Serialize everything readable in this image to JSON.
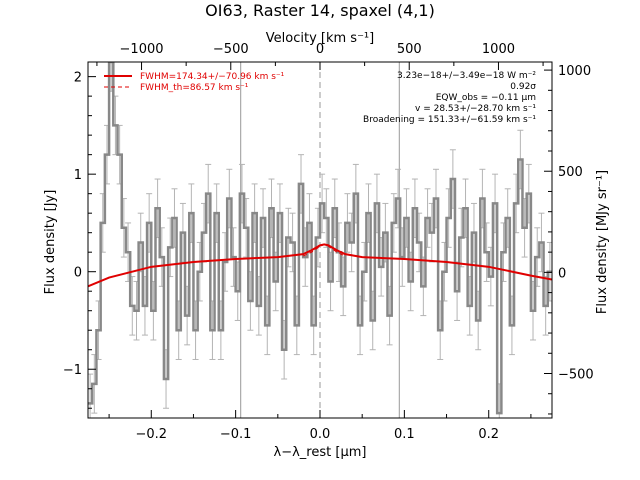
{
  "chart_data": {
    "type": "line",
    "title": "OI63, Raster 14, spaxel (4,1)",
    "xlabel": "λ−λ_rest [μm]",
    "ylabel": "Flux density [Jy]",
    "top_xlabel": "Velocity [km s⁻¹]",
    "right_ylabel": "Flux density [MJy sr⁻¹]",
    "xlim": [
      -0.275,
      0.275
    ],
    "ylim": [
      -1.5,
      2.15
    ],
    "top_xlim": [
      -1300,
      1300
    ],
    "right_ylim": [
      -720,
      1040
    ],
    "x_ticks": [
      -0.2,
      -0.1,
      0.0,
      0.1,
      0.2
    ],
    "x_tick_labels": [
      "−0.2",
      "−0.1",
      "0.0",
      "0.1",
      "0.2"
    ],
    "y_ticks": [
      -1,
      0,
      1,
      2
    ],
    "y_tick_labels": [
      "−1",
      "0",
      "1",
      "2"
    ],
    "top_ticks": [
      -1000,
      -500,
      0,
      500,
      1000
    ],
    "top_tick_labels": [
      "−1000",
      "−500",
      "0",
      "500",
      "1000"
    ],
    "right_ticks": [
      -500,
      0,
      500,
      1000
    ],
    "right_tick_labels": [
      "−500",
      "0",
      "500",
      "1000"
    ],
    "vertical_lines": [
      {
        "x": -0.094,
        "style": "solid",
        "color": "#999999"
      },
      {
        "x": 0.0,
        "style": "dashed",
        "color": "#999999"
      },
      {
        "x": 0.094,
        "style": "solid",
        "color": "#999999"
      }
    ],
    "legend": {
      "placement": "top-left",
      "entries": [
        {
          "label": "FWHM=174.34+/−70.96 km s⁻¹",
          "style": "solid",
          "color": "#e00000"
        },
        {
          "label": "FWHM_th=86.57 km s⁻¹",
          "style": "dashed",
          "color": "#e00000"
        }
      ]
    },
    "annotations": [
      "3.23e−18+/−3.49e−18 W m⁻²",
      "0.92σ",
      "EQW_obs = −0.11 μm",
      "v = 28.53+/−28.70 km s⁻¹",
      "Broadening = 151.33+/−61.59 km s⁻¹"
    ],
    "series": [
      {
        "style": "steps",
        "color": "#888888",
        "x": [
          -0.275,
          -0.27,
          -0.265,
          -0.26,
          -0.255,
          -0.25,
          -0.245,
          -0.24,
          -0.235,
          -0.23,
          -0.225,
          -0.22,
          -0.215,
          -0.21,
          -0.205,
          -0.2,
          -0.195,
          -0.19,
          -0.185,
          -0.18,
          -0.175,
          -0.17,
          -0.165,
          -0.16,
          -0.155,
          -0.15,
          -0.145,
          -0.14,
          -0.135,
          -0.13,
          -0.125,
          -0.12,
          -0.115,
          -0.11,
          -0.105,
          -0.1,
          -0.095,
          -0.09,
          -0.085,
          -0.08,
          -0.075,
          -0.07,
          -0.065,
          -0.06,
          -0.055,
          -0.05,
          -0.045,
          -0.04,
          -0.035,
          -0.03,
          -0.025,
          -0.02,
          -0.015,
          -0.01,
          -0.005,
          0.0,
          0.005,
          0.01,
          0.015,
          0.02,
          0.025,
          0.03,
          0.035,
          0.04,
          0.045,
          0.05,
          0.055,
          0.06,
          0.065,
          0.07,
          0.075,
          0.08,
          0.085,
          0.09,
          0.095,
          0.1,
          0.105,
          0.11,
          0.115,
          0.12,
          0.125,
          0.13,
          0.135,
          0.14,
          0.145,
          0.15,
          0.155,
          0.16,
          0.165,
          0.17,
          0.175,
          0.18,
          0.185,
          0.19,
          0.195,
          0.2,
          0.205,
          0.21,
          0.215,
          0.22,
          0.225,
          0.23,
          0.235,
          0.24,
          0.245,
          0.25,
          0.255,
          0.26,
          0.265,
          0.27
        ],
        "y": [
          -1.35,
          -1.15,
          -0.6,
          0.5,
          1.2,
          2.15,
          1.5,
          1.2,
          0.45,
          0.2,
          -0.35,
          -0.4,
          0.3,
          -0.35,
          0.5,
          -0.4,
          0.65,
          0.15,
          -1.1,
          0.25,
          0.55,
          -0.6,
          0.4,
          -0.45,
          0.6,
          -0.6,
          0.0,
          0.4,
          0.8,
          -0.6,
          0.6,
          -0.6,
          0.1,
          0.75,
          0.15,
          -0.2,
          0.8,
          0.45,
          -0.3,
          0.6,
          -0.35,
          0.55,
          -0.55,
          0.65,
          -0.1,
          0.6,
          -0.8,
          0.35,
          0.3,
          -0.55,
          0.9,
          0.15,
          0.5,
          -0.55,
          0.35,
          0.7,
          0.55,
          -0.1,
          0.65,
          0.2,
          -0.15,
          0.5,
          0.3,
          0.8,
          -0.55,
          0.0,
          0.6,
          -0.5,
          0.7,
          0.05,
          0.4,
          -0.45,
          0.5,
          0.75,
          0.15,
          0.55,
          -0.1,
          0.65,
          0.3,
          -0.15,
          0.55,
          0.4,
          0.75,
          -0.6,
          0.0,
          0.55,
          0.95,
          -0.2,
          0.35,
          0.65,
          -0.35,
          0.4,
          -0.5,
          0.75,
          0.2,
          -0.05,
          0.7,
          -1.45,
          0.2,
          0.55,
          -0.55,
          0.7,
          1.15,
          0.45,
          0.8,
          -0.4,
          0.15,
          0.3,
          -0.35,
          0.0
        ],
        "err": 0.3
      },
      {
        "name": "FWHM=174.34+/−70.96 km s⁻¹",
        "style": "solid",
        "color": "#e00000",
        "x": [
          -0.275,
          -0.25,
          -0.2,
          -0.15,
          -0.1,
          -0.05,
          -0.02,
          -0.01,
          0.0,
          0.005,
          0.01,
          0.02,
          0.03,
          0.05,
          0.1,
          0.15,
          0.2,
          0.25,
          0.275
        ],
        "y": [
          -0.15,
          -0.06,
          0.05,
          0.1,
          0.13,
          0.15,
          0.18,
          0.22,
          0.27,
          0.28,
          0.27,
          0.22,
          0.18,
          0.15,
          0.13,
          0.1,
          0.05,
          -0.04,
          -0.08
        ]
      },
      {
        "name": "FWHM_th=86.57 km s⁻¹",
        "style": "dashed",
        "color": "#e00000",
        "x": [
          -0.02,
          -0.01,
          0.0,
          0.005,
          0.01,
          0.02,
          0.03
        ],
        "y": [
          0.16,
          0.2,
          0.26,
          0.28,
          0.26,
          0.2,
          0.16
        ]
      }
    ]
  }
}
